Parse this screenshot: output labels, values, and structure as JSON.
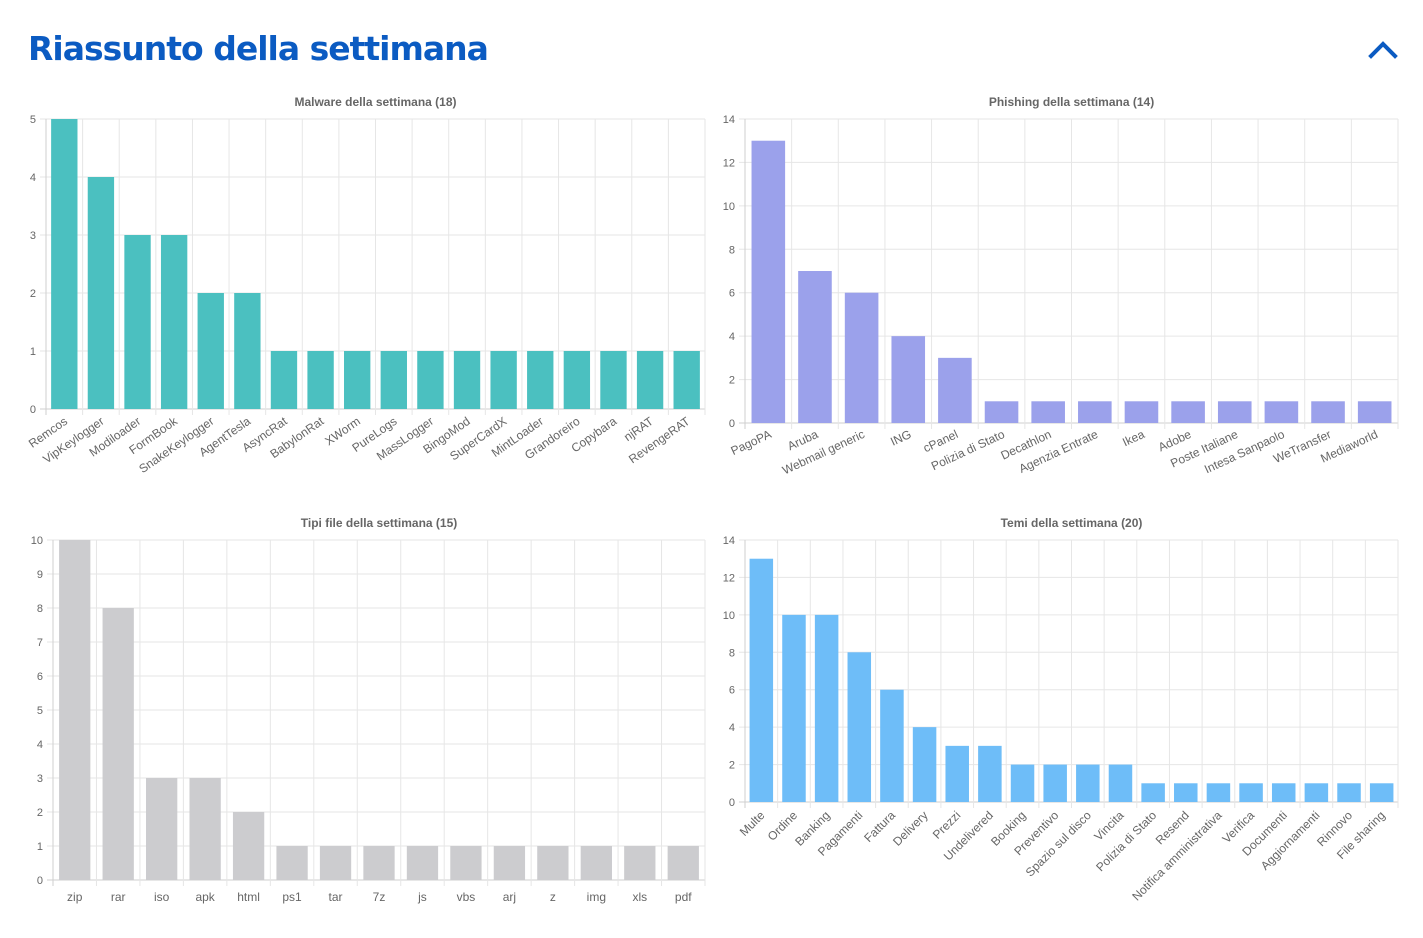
{
  "header": {
    "title": "Riassunto della settimana",
    "collapse_icon": "chevron-up-icon",
    "accent": "#0b5bc2"
  },
  "chart_data": [
    {
      "type": "bar",
      "title": "Malware della settimana (18)",
      "categories": [
        "Remcos",
        "VipKeylogger",
        "Modiloader",
        "FormBook",
        "SnakeKeylogger",
        "AgentTesla",
        "AsyncRat",
        "BabylonRat",
        "XWorm",
        "PureLogs",
        "MassLogger",
        "BingoMod",
        "SuperCardX",
        "MintLoader",
        "Grandoreiro",
        "Copybara",
        "njRAT",
        "RevengeRAT"
      ],
      "values": [
        5,
        4,
        3,
        3,
        2,
        2,
        1,
        1,
        1,
        1,
        1,
        1,
        1,
        1,
        1,
        1,
        1,
        1
      ],
      "ylim": [
        0,
        5
      ],
      "yticks": [
        0,
        1,
        2,
        3,
        4,
        5
      ],
      "color": "#4bc0c0",
      "xlabel_rotation": -35,
      "grid": true
    },
    {
      "type": "bar",
      "title": "Phishing della settimana (14)",
      "categories": [
        "PagoPA",
        "Aruba",
        "Webmail generic",
        "ING",
        "cPanel",
        "Polizia di Stato",
        "Decathlon",
        "Agenzia Entrate",
        "Ikea",
        "Adobe",
        "Poste Italiane",
        "Intesa Sanpaolo",
        "WeTransfer",
        "Mediaworld"
      ],
      "values": [
        13,
        7,
        6,
        4,
        3,
        1,
        1,
        1,
        1,
        1,
        1,
        1,
        1,
        1
      ],
      "ylim": [
        0,
        14
      ],
      "yticks": [
        0,
        2,
        4,
        6,
        8,
        10,
        12,
        14
      ],
      "color": "#9ba1eb",
      "xlabel_rotation": -25,
      "grid": true
    },
    {
      "type": "bar",
      "title": "Tipi file della settimana (15)",
      "categories": [
        "zip",
        "rar",
        "iso",
        "apk",
        "html",
        "ps1",
        "tar",
        "7z",
        "js",
        "vbs",
        "arj",
        "z",
        "img",
        "xls",
        "pdf"
      ],
      "values": [
        10,
        8,
        3,
        3,
        2,
        1,
        1,
        1,
        1,
        1,
        1,
        1,
        1,
        1,
        1
      ],
      "ylim": [
        0,
        10
      ],
      "yticks": [
        0,
        1,
        2,
        3,
        4,
        5,
        6,
        7,
        8,
        9,
        10
      ],
      "color": "#cccccf",
      "xlabel_rotation": 0,
      "grid": true
    },
    {
      "type": "bar",
      "title": "Temi della settimana (20)",
      "categories": [
        "Multe",
        "Ordine",
        "Banking",
        "Pagamenti",
        "Fattura",
        "Delivery",
        "Prezzi",
        "Undelivered",
        "Booking",
        "Preventivo",
        "Spazio sul disco",
        "Vincita",
        "Polizia di Stato",
        "Resend",
        "Notifica amministrativa",
        "Verifica",
        "Documenti",
        "Aggiornamenti",
        "Rinnovo",
        "File sharing"
      ],
      "values": [
        13,
        10,
        10,
        8,
        6,
        4,
        3,
        3,
        2,
        2,
        2,
        2,
        1,
        1,
        1,
        1,
        1,
        1,
        1,
        1
      ],
      "ylim": [
        0,
        14
      ],
      "yticks": [
        0,
        2,
        4,
        6,
        8,
        10,
        12,
        14
      ],
      "color": "#6ebdf8",
      "xlabel_rotation": -45,
      "grid": true
    }
  ]
}
